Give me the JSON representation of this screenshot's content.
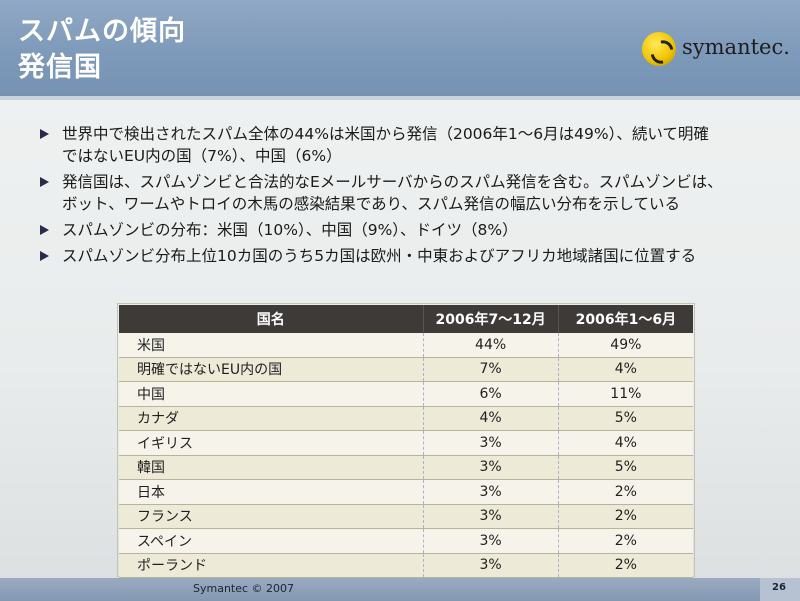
{
  "title": {
    "line1": "スパムの傾向",
    "line2": "発信国"
  },
  "logo": {
    "text": "symantec."
  },
  "bullets": [
    {
      "lines": [
        "世界中で検出されたスパム全体の44%は米国から発信（2006年1～6月は49%）、続いて明確",
        "ではないEU内の国（7%）、中国（6%）"
      ]
    },
    {
      "lines": [
        "発信国は、スパムゾンビと合法的なEメールサーバからのスパム発信を含む。スパムゾンビは、",
        "ボット、ワームやトロイの木馬の感染結果であり、スパム発信の幅広い分布を示している"
      ]
    },
    {
      "lines": [
        "スパムゾンビの分布：米国（10%）、中国（9%）、ドイツ（8%）"
      ]
    },
    {
      "lines": [
        "スパムゾンビ分布上位10カ国のうち5カ国は欧州・中東およびアフリカ地域諸国に位置する"
      ]
    }
  ],
  "table": {
    "headers": [
      "国名",
      "2006年7～12月",
      "2006年1～6月"
    ],
    "rows": [
      [
        "米国",
        "44%",
        "49%"
      ],
      [
        "明確ではないEU内の国",
        "7%",
        "4%"
      ],
      [
        "中国",
        "6%",
        "11%"
      ],
      [
        "カナダ",
        "4%",
        "5%"
      ],
      [
        "イギリス",
        "3%",
        "4%"
      ],
      [
        "韓国",
        "3%",
        "5%"
      ],
      [
        "日本",
        "3%",
        "2%"
      ],
      [
        "フランス",
        "3%",
        "2%"
      ],
      [
        "スペイン",
        "3%",
        "2%"
      ],
      [
        "ポーランド",
        "3%",
        "2%"
      ]
    ]
  },
  "footer": {
    "text": "Symantec © 2007",
    "page": "26"
  },
  "colors": {
    "header_bg": "#7e9aba",
    "table_header_bg": "#3e3a38",
    "bullet_arrow": "#2a2a4a"
  }
}
